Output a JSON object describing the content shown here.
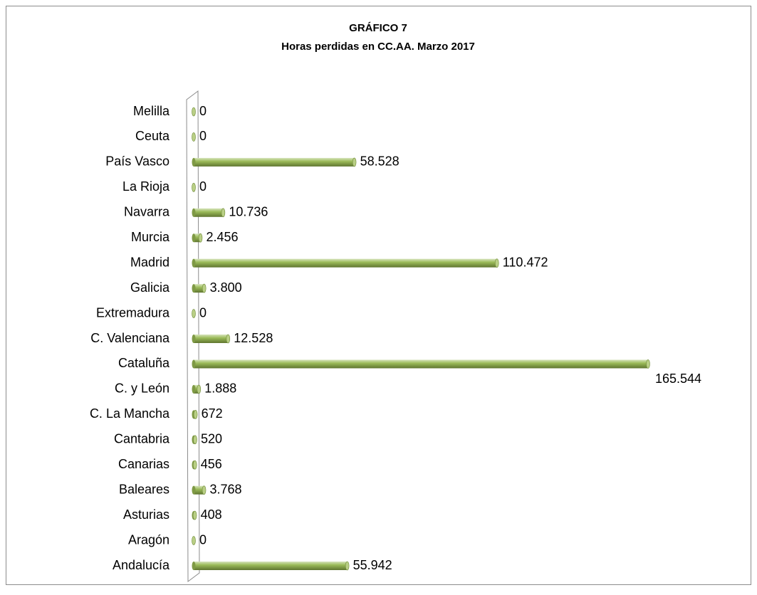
{
  "chart_data": {
    "type": "bar",
    "orientation": "horizontal",
    "title": "GRÁFICO 7",
    "subtitle": "Horas perdidas en CC.AA. Marzo 2017",
    "color": "#9bbb59",
    "categories": [
      "Melilla",
      "Ceuta",
      "País Vasco",
      "La Rioja",
      "Navarra",
      "Murcia",
      "Madrid",
      "Galicia",
      "Extremadura",
      "C. Valenciana",
      "Cataluña",
      "C. y León",
      "C. La Mancha",
      "Cantabria",
      "Canarias",
      "Baleares",
      "Asturias",
      "Aragón",
      "Andalucía"
    ],
    "values": [
      0,
      0,
      58528,
      0,
      10736,
      2456,
      110472,
      3800,
      0,
      12528,
      165544,
      1888,
      672,
      520,
      456,
      3768,
      408,
      0,
      55942
    ],
    "value_labels": [
      "0",
      "0",
      "58.528",
      "0",
      "10.736",
      "2.456",
      "110.472",
      "3.800",
      "0",
      "12.528",
      "165.544",
      "1.888",
      "672",
      "520",
      "456",
      "3.768",
      "408",
      "0",
      "55.942"
    ]
  }
}
